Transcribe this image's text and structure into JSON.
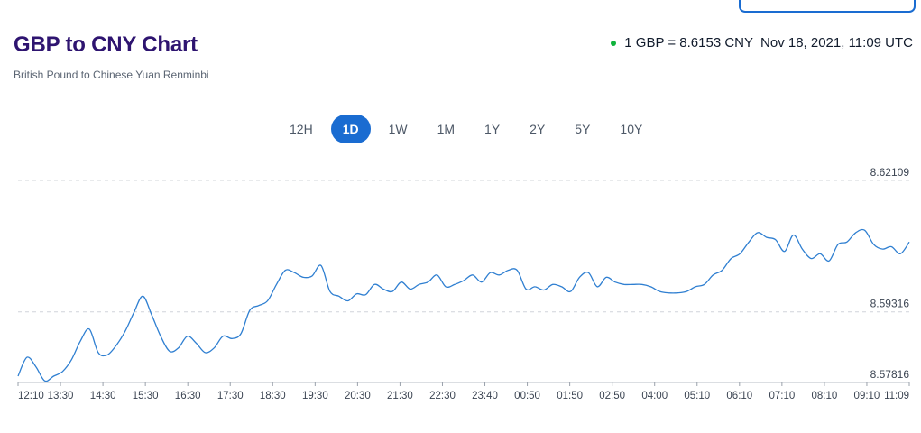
{
  "header": {
    "title": "GBP to CNY Chart",
    "subtitle": "British Pound to Chinese Yuan Renminbi",
    "rate_text": "1 GBP = 8.6153 CNY",
    "timestamp": "Nov 18, 2021, 11:09 UTC",
    "live_color": "#10b33c"
  },
  "tabs": [
    {
      "label": "12H",
      "active": false
    },
    {
      "label": "1D",
      "active": true
    },
    {
      "label": "1W",
      "active": false
    },
    {
      "label": "1M",
      "active": false
    },
    {
      "label": "1Y",
      "active": false
    },
    {
      "label": "2Y",
      "active": false
    },
    {
      "label": "5Y",
      "active": false
    },
    {
      "label": "10Y",
      "active": false
    }
  ],
  "colors": {
    "accent": "#1a6cd1",
    "line": "#2f7fd1",
    "title": "#2e1470"
  },
  "chart_data": {
    "type": "line",
    "title": "GBP to CNY Chart",
    "series": [
      {
        "name": "GBP/CNY",
        "values": [
          8.5795,
          8.5835,
          8.5815,
          8.5785,
          8.5795,
          8.5805,
          8.583,
          8.587,
          8.5895,
          8.5845,
          8.584,
          8.586,
          8.589,
          8.593,
          8.5965,
          8.5925,
          8.588,
          8.5848,
          8.5855,
          8.588,
          8.5865,
          8.5845,
          8.5855,
          8.588,
          8.5875,
          8.5885,
          8.5935,
          8.5945,
          8.5955,
          8.599,
          8.602,
          8.6015,
          8.6005,
          8.6008,
          8.603,
          8.5975,
          8.5965,
          8.5955,
          8.597,
          8.5968,
          8.599,
          8.598,
          8.5975,
          8.5995,
          8.598,
          8.599,
          8.5995,
          8.601,
          8.5985,
          8.599,
          8.5998,
          8.601,
          8.5995,
          8.6015,
          8.601,
          8.602,
          8.602,
          8.598,
          8.5985,
          8.5978,
          8.599,
          8.5985,
          8.5975,
          8.6005,
          8.6015,
          8.5985,
          8.6005,
          8.5995,
          8.599,
          8.599,
          8.599,
          8.5985,
          8.5975,
          8.5972,
          8.5972,
          8.5975,
          8.5985,
          8.599,
          8.601,
          8.602,
          8.6045,
          8.6055,
          8.608,
          8.61,
          8.609,
          8.6085,
          8.606,
          8.6095,
          8.6065,
          8.6045,
          8.6055,
          8.604,
          8.6075,
          8.608,
          8.61,
          8.6105,
          8.6075,
          8.6065,
          8.607,
          8.6055,
          8.608
        ]
      }
    ],
    "x_tick_labels": [
      "12:10",
      "13:30",
      "14:30",
      "15:30",
      "16:30",
      "17:30",
      "18:30",
      "19:30",
      "20:30",
      "21:30",
      "22:30",
      "23:40",
      "00:50",
      "01:50",
      "02:50",
      "04:00",
      "05:10",
      "06:10",
      "07:10",
      "08:10",
      "09:10",
      "11:09"
    ],
    "y_tick_labels": [
      "8.62109",
      "8.59316",
      "8.57816"
    ],
    "ylim": [
      8.57816,
      8.62109
    ],
    "grid": true,
    "xlabel": "",
    "ylabel": ""
  }
}
